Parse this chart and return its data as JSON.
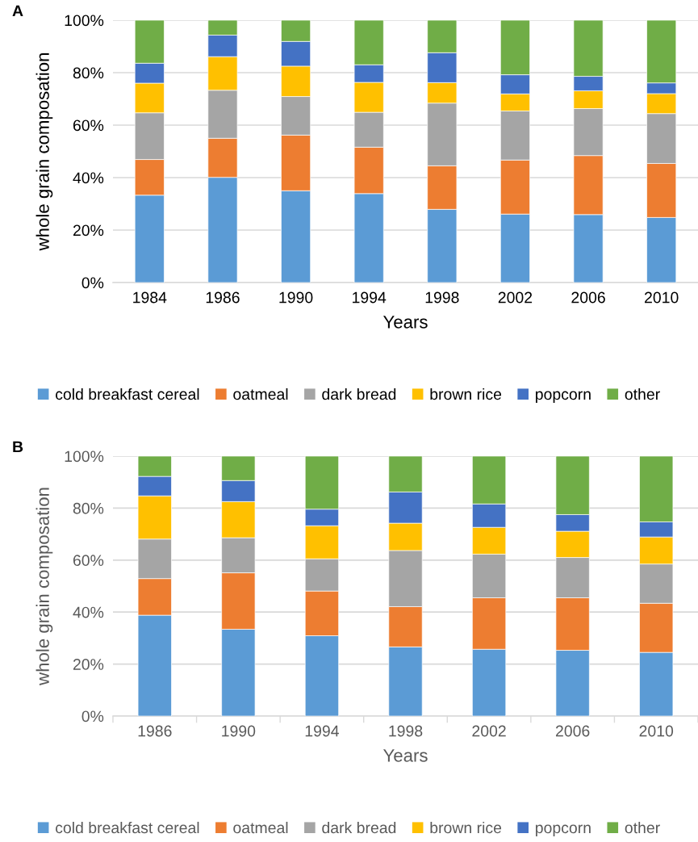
{
  "chart_data": [
    {
      "type": "bar",
      "title": "A",
      "xlabel": "Years",
      "ylabel": "whole grain composation",
      "stacked": true,
      "categories": [
        "1984",
        "1986",
        "1990",
        "1994",
        "1998",
        "2002",
        "2006",
        "2010"
      ],
      "series": [
        {
          "name": "cold breakfast cereal",
          "color": "#5b9bd5",
          "values": [
            33.3,
            40.1,
            35.0,
            33.9,
            27.9,
            26.1,
            25.9,
            24.8
          ]
        },
        {
          "name": "oatmeal",
          "color": "#ed7d31",
          "values": [
            13.6,
            14.9,
            21.2,
            17.7,
            16.6,
            20.6,
            22.5,
            20.6
          ]
        },
        {
          "name": "dark bread",
          "color": "#a5a5a5",
          "values": [
            17.8,
            18.3,
            14.7,
            13.3,
            23.9,
            18.7,
            17.9,
            19.0
          ]
        },
        {
          "name": "brown rice",
          "color": "#ffc000",
          "values": [
            11.3,
            12.8,
            11.6,
            11.4,
            7.8,
            6.5,
            6.8,
            7.6
          ]
        },
        {
          "name": "popcorn",
          "color": "#4472c4",
          "values": [
            7.6,
            8.2,
            9.4,
            6.7,
            11.4,
            7.3,
            5.5,
            4.1
          ]
        },
        {
          "name": "other",
          "color": "#70ad47",
          "values": [
            16.4,
            5.7,
            8.1,
            17.0,
            12.4,
            20.8,
            21.4,
            23.9
          ]
        }
      ],
      "ylim": [
        0,
        100
      ],
      "yticks": [
        {
          "value": 0,
          "label": "0%"
        },
        {
          "value": 20,
          "label": "20%"
        },
        {
          "value": 40,
          "label": "40%"
        },
        {
          "value": 60,
          "label": "60%"
        },
        {
          "value": 80,
          "label": "80%"
        },
        {
          "value": 100,
          "label": "100%"
        }
      ],
      "grid": "y",
      "legend": "bottom"
    },
    {
      "type": "bar",
      "title": "B",
      "xlabel": "Years",
      "ylabel": "whole grain composation",
      "stacked": true,
      "categories": [
        "1986",
        "1990",
        "1994",
        "1998",
        "2002",
        "2006",
        "2010"
      ],
      "series": [
        {
          "name": "cold breakfast cereal",
          "color": "#5b9bd5",
          "values": [
            38.8,
            33.4,
            30.9,
            26.6,
            25.7,
            25.3,
            24.5
          ]
        },
        {
          "name": "oatmeal",
          "color": "#ed7d31",
          "values": [
            14.1,
            21.7,
            17.2,
            15.5,
            19.8,
            20.2,
            18.9
          ]
        },
        {
          "name": "dark bread",
          "color": "#a5a5a5",
          "values": [
            15.2,
            13.5,
            12.4,
            21.6,
            16.8,
            15.5,
            15.1
          ]
        },
        {
          "name": "brown rice",
          "color": "#ffc000",
          "values": [
            16.6,
            13.9,
            12.7,
            10.5,
            10.3,
            10.1,
            10.4
          ]
        },
        {
          "name": "popcorn",
          "color": "#4472c4",
          "values": [
            7.5,
            8.1,
            6.4,
            12.0,
            9.0,
            6.4,
            5.8
          ]
        },
        {
          "name": "other",
          "color": "#70ad47",
          "values": [
            7.8,
            9.4,
            20.4,
            13.8,
            18.4,
            22.5,
            25.3
          ]
        }
      ],
      "ylim": [
        0,
        100
      ],
      "yticks": [
        {
          "value": 0,
          "label": "0%"
        },
        {
          "value": 20,
          "label": "20%"
        },
        {
          "value": 40,
          "label": "40%"
        },
        {
          "value": 60,
          "label": "60%"
        },
        {
          "value": 80,
          "label": "80%"
        },
        {
          "value": 100,
          "label": "100%"
        }
      ],
      "grid": "y",
      "legend": "bottom"
    }
  ]
}
